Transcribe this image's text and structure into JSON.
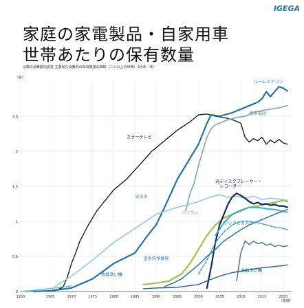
{
  "logo": "IGEGA",
  "title_line1": "家庭の家電製品・自家用車",
  "title_line2": "世帯あたりの保有数量",
  "subtitle": "以降の消費動向調査 主要耐久消費財の保有数量の推移（二人以上の世帯）3月末（年）",
  "chart_data": {
    "type": "line",
    "y_unit": "（台）",
    "x_unit": "（年度）",
    "xlim": [
      1958,
      2022
    ],
    "ylim": [
      0,
      3.0
    ],
    "x_ticks": [
      "1958",
      "1965",
      "1970",
      "1975",
      "1980",
      "1985",
      "1990",
      "1995",
      "2000",
      "2005",
      "2010",
      "2015",
      "2020"
    ],
    "y_ticks": [
      "0",
      "0.5",
      "1",
      "1.5",
      "2",
      "2.5"
    ],
    "series": [
      {
        "name": "カラーテレビ",
        "color": "#111111",
        "dash": "2,1.2",
        "width": 1.4,
        "points": [
          [
            1966,
            0.01
          ],
          [
            1968,
            0.06
          ],
          [
            1969,
            0.2
          ],
          [
            1970,
            0.4
          ],
          [
            1971,
            0.55
          ],
          [
            1972,
            0.72
          ],
          [
            1974,
            0.95
          ],
          [
            1976,
            1.15
          ],
          [
            1978,
            1.3
          ],
          [
            1980,
            1.45
          ],
          [
            1983,
            1.6
          ],
          [
            1986,
            1.8
          ],
          [
            1989,
            2.0
          ],
          [
            1992,
            2.15
          ],
          [
            1995,
            2.3
          ],
          [
            1998,
            2.42
          ],
          [
            2000,
            2.52
          ],
          [
            2002,
            2.53
          ],
          [
            2004,
            2.5
          ],
          [
            2006,
            2.48
          ],
          [
            2008,
            2.45
          ],
          [
            2010,
            2.4
          ],
          [
            2011,
            2.2
          ],
          [
            2012,
            2.13
          ],
          [
            2013,
            2.18
          ],
          [
            2014,
            2.15
          ],
          [
            2015,
            2.2
          ],
          [
            2016,
            2.1
          ],
          [
            2017,
            2.16
          ],
          [
            2018,
            2.12
          ],
          [
            2019,
            2.17
          ],
          [
            2020,
            2.12
          ],
          [
            2021,
            2.1
          ]
        ]
      },
      {
        "name": "ルームエアコン",
        "color": "#1b73b3",
        "width": 2.2,
        "points": [
          [
            1961,
            0.0
          ],
          [
            1965,
            0.01
          ],
          [
            1970,
            0.05
          ],
          [
            1975,
            0.18
          ],
          [
            1980,
            0.4
          ],
          [
            1985,
            0.55
          ],
          [
            1988,
            0.8
          ],
          [
            1990,
            0.95
          ],
          [
            1992,
            1.2
          ],
          [
            1995,
            1.6
          ],
          [
            1998,
            1.9
          ],
          [
            2000,
            2.1
          ],
          [
            2002,
            2.4
          ],
          [
            2003,
            2.52
          ],
          [
            2005,
            2.5
          ],
          [
            2008,
            2.55
          ],
          [
            2010,
            2.6
          ],
          [
            2012,
            2.65
          ],
          [
            2014,
            2.7
          ],
          [
            2015,
            2.75
          ],
          [
            2016,
            2.85
          ],
          [
            2017,
            2.78
          ],
          [
            2018,
            2.85
          ],
          [
            2019,
            2.92
          ],
          [
            2020,
            2.9
          ],
          [
            2021,
            2.86
          ]
        ]
      },
      {
        "name": "携帯電話",
        "color": "#8aa6b5",
        "width": 1.7,
        "points": [
          [
            1997,
            1.15
          ],
          [
            1998,
            1.4
          ],
          [
            1999,
            1.55
          ],
          [
            2000,
            1.8
          ],
          [
            2001,
            2.0
          ],
          [
            2002,
            2.2
          ],
          [
            2003,
            2.32
          ],
          [
            2004,
            2.38
          ],
          [
            2005,
            2.4
          ],
          [
            2007,
            2.45
          ],
          [
            2009,
            2.48
          ],
          [
            2011,
            2.5
          ],
          [
            2013,
            2.55
          ],
          [
            2015,
            2.58
          ],
          [
            2017,
            2.6
          ],
          [
            2019,
            2.62
          ],
          [
            2021,
            2.65
          ]
        ]
      },
      {
        "name": "乗用車",
        "color": "#8fcbe6",
        "width": 1.6,
        "points": [
          [
            1966,
            0.07
          ],
          [
            1970,
            0.22
          ],
          [
            1975,
            0.45
          ],
          [
            1980,
            0.7
          ],
          [
            1985,
            0.9
          ],
          [
            1990,
            1.1
          ],
          [
            1995,
            1.2
          ],
          [
            2000,
            1.28
          ],
          [
            2003,
            1.35
          ],
          [
            2005,
            1.38
          ],
          [
            2007,
            1.34
          ],
          [
            2009,
            1.36
          ],
          [
            2011,
            1.33
          ],
          [
            2013,
            1.36
          ],
          [
            2015,
            1.31
          ],
          [
            2017,
            1.33
          ],
          [
            2019,
            1.32
          ],
          [
            2021,
            1.3
          ]
        ]
      },
      {
        "name": "パソコン",
        "color": "#99c73c",
        "width": 2.2,
        "points": [
          [
            1987,
            0.1
          ],
          [
            1990,
            0.12
          ],
          [
            1993,
            0.15
          ],
          [
            1996,
            0.25
          ],
          [
            1998,
            0.4
          ],
          [
            2000,
            0.6
          ],
          [
            2002,
            0.8
          ],
          [
            2004,
            0.95
          ],
          [
            2006,
            1.05
          ],
          [
            2008,
            1.1
          ],
          [
            2010,
            1.15
          ],
          [
            2012,
            1.2
          ],
          [
            2014,
            1.22
          ],
          [
            2016,
            1.25
          ],
          [
            2018,
            1.27
          ],
          [
            2020,
            1.3
          ],
          [
            2021,
            1.28
          ]
        ]
      },
      {
        "name": "光ディスクプレーヤー・レコーダー",
        "color": "#0e2a66",
        "width": 2.2,
        "points": [
          [
            2002,
            0.05
          ],
          [
            2003,
            0.35
          ],
          [
            2004,
            0.7
          ],
          [
            2005,
            0.95
          ],
          [
            2006,
            1.1
          ],
          [
            2007,
            1.25
          ],
          [
            2008,
            1.35
          ],
          [
            2009,
            1.4
          ],
          [
            2010,
            1.37
          ],
          [
            2011,
            1.33
          ],
          [
            2012,
            1.28
          ],
          [
            2013,
            1.25
          ],
          [
            2014,
            1.27
          ],
          [
            2015,
            1.24
          ],
          [
            2016,
            1.25
          ],
          [
            2017,
            1.23
          ],
          [
            2018,
            1.24
          ],
          [
            2019,
            1.22
          ],
          [
            2020,
            1.22
          ],
          [
            2021,
            1.2
          ]
        ]
      },
      {
        "name": "デジタルカメラ",
        "color": "#2f9ad4",
        "dash": "4,2",
        "width": 1.4,
        "points": [
          [
            2000,
            0.25
          ],
          [
            2002,
            0.45
          ],
          [
            2004,
            0.7
          ],
          [
            2006,
            0.85
          ],
          [
            2008,
            0.95
          ],
          [
            2010,
            1.0
          ],
          [
            2012,
            1.0
          ],
          [
            2014,
            0.98
          ],
          [
            2016,
            0.95
          ],
          [
            2018,
            0.92
          ],
          [
            2020,
            0.9
          ],
          [
            2021,
            0.88
          ]
        ]
      },
      {
        "name": "",
        "color": "#30b3c0",
        "width": 2.0,
        "points": [
          [
            2004,
            0.8
          ],
          [
            2006,
            0.98
          ],
          [
            2008,
            1.1
          ],
          [
            2010,
            1.16
          ],
          [
            2012,
            1.2
          ],
          [
            2014,
            1.2
          ],
          [
            2016,
            1.18
          ],
          [
            2018,
            1.17
          ],
          [
            2020,
            1.14
          ],
          [
            2021,
            1.13
          ]
        ]
      },
      {
        "name": "",
        "color": "#5a7d95",
        "width": 1.6,
        "points": [
          [
            2009,
            0.15
          ],
          [
            2010,
            0.55
          ],
          [
            2011,
            0.72
          ],
          [
            2012,
            0.67
          ],
          [
            2013,
            0.72
          ],
          [
            2014,
            0.68
          ],
          [
            2015,
            0.7
          ],
          [
            2016,
            0.66
          ],
          [
            2017,
            0.68
          ],
          [
            2018,
            0.64
          ],
          [
            2019,
            0.66
          ],
          [
            2020,
            0.64
          ],
          [
            2021,
            0.65
          ]
        ]
      },
      {
        "name": "温水洗浄便座",
        "color": "#2a7db3",
        "width": 1.6,
        "points": [
          [
            1992,
            0.07
          ],
          [
            1994,
            0.12
          ],
          [
            1996,
            0.18
          ],
          [
            1998,
            0.28
          ],
          [
            2000,
            0.38
          ],
          [
            2002,
            0.5
          ],
          [
            2004,
            0.6
          ],
          [
            2006,
            0.72
          ],
          [
            2008,
            0.8
          ],
          [
            2010,
            0.88
          ],
          [
            2012,
            0.95
          ],
          [
            2014,
            1.0
          ],
          [
            2016,
            1.05
          ],
          [
            2018,
            1.1
          ],
          [
            2020,
            1.15
          ],
          [
            2021,
            1.17
          ]
        ]
      },
      {
        "name": "食器洗い機",
        "color": "#1a5fa0",
        "width": 1.4,
        "points": [
          [
            1987,
            0.04
          ],
          [
            1990,
            0.05
          ],
          [
            1995,
            0.06
          ],
          [
            2000,
            0.1
          ],
          [
            2002,
            0.15
          ],
          [
            2005,
            0.22
          ],
          [
            2008,
            0.27
          ],
          [
            2011,
            0.3
          ],
          [
            2014,
            0.33
          ],
          [
            2017,
            0.35
          ],
          [
            2020,
            0.37
          ],
          [
            2021,
            0.38
          ]
        ]
      },
      {
        "name": "",
        "color": "#5ab8e0",
        "width": 1.4,
        "points": [
          [
            1958,
            0.0
          ],
          [
            1960,
            0.01
          ],
          [
            1963,
            0.03
          ],
          [
            1966,
            0.05
          ],
          [
            1970,
            0.08
          ]
        ]
      }
    ],
    "labels": [
      {
        "text": "ルームエアコン",
        "x": 2013,
        "y": 2.97,
        "color": "#1b73b3"
      },
      {
        "text": "携帯電話",
        "x": 2012,
        "y": 2.52,
        "color": "#6b8a99"
      },
      {
        "text": "カラーテレビ",
        "x": 1983,
        "y": 2.18,
        "color": "#222"
      },
      {
        "text": "光ディスクプレーヤー・",
        "x": 2004,
        "y": 1.55,
        "color": "#0e2a66"
      },
      {
        "text": "レコーダー",
        "x": 2005,
        "y": 1.48,
        "color": "#0e2a66"
      },
      {
        "text": "乗用車",
        "x": 1985,
        "y": 1.33,
        "color": "#5aa9cc"
      },
      {
        "text": "パソコン",
        "x": 1996,
        "y": 1.1,
        "color": "#86b630"
      },
      {
        "text": "デジタルカメラ",
        "x": 2006,
        "y": 0.95,
        "color": "#2f9ad4"
      },
      {
        "text": "温水洗浄便座",
        "x": 1987,
        "y": 0.45,
        "color": "#2a7db3"
      },
      {
        "text": "食器洗い機",
        "x": 1977,
        "y": 0.22,
        "color": "#1a5fa0"
      },
      {
        "text": "食器洗い機",
        "x": 2010,
        "y": 0.28,
        "color": "#1a5fa0"
      }
    ]
  }
}
